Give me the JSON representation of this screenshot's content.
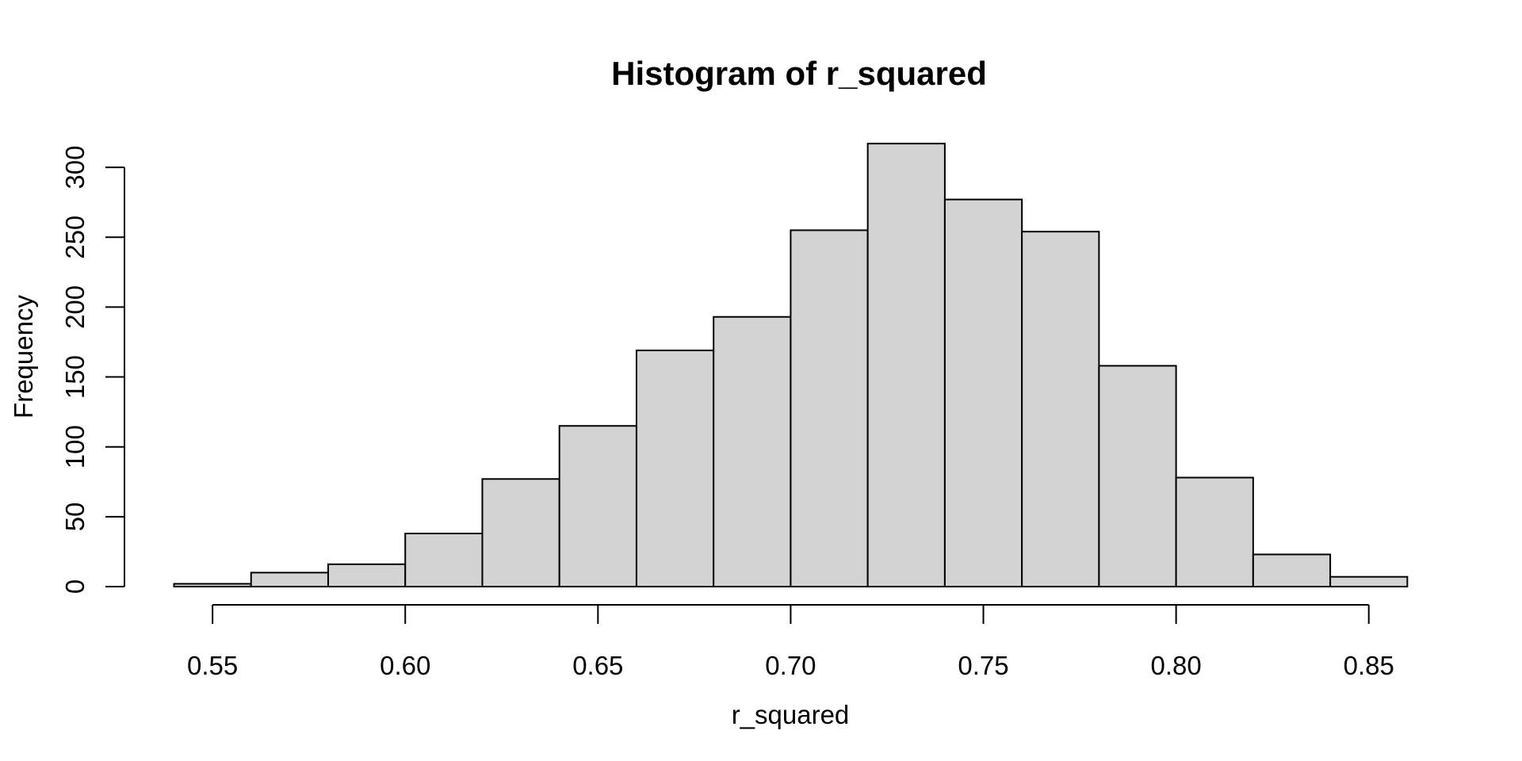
{
  "chart_data": {
    "type": "bar",
    "chart_kind": "histogram",
    "title": "Histogram of r_squared",
    "xlabel": "r_squared",
    "ylabel": "Frequency",
    "bin_start": 0.54,
    "bin_width": 0.02,
    "bin_edges": [
      0.54,
      0.56,
      0.58,
      0.6,
      0.62,
      0.64,
      0.66,
      0.68,
      0.7,
      0.72,
      0.74,
      0.76,
      0.78,
      0.8,
      0.82,
      0.84,
      0.86
    ],
    "counts": [
      2,
      10,
      16,
      38,
      77,
      115,
      169,
      193,
      255,
      317,
      277,
      254,
      158,
      78,
      23,
      7
    ],
    "x_ticks": [
      0.55,
      0.6,
      0.65,
      0.7,
      0.75,
      0.8,
      0.85
    ],
    "x_tick_labels": [
      "0.55",
      "0.60",
      "0.65",
      "0.70",
      "0.75",
      "0.80",
      "0.85"
    ],
    "y_ticks": [
      0,
      50,
      100,
      150,
      200,
      250,
      300
    ],
    "y_tick_labels": [
      "0",
      "50",
      "100",
      "150",
      "200",
      "250",
      "300"
    ],
    "xlim": [
      0.54,
      0.86
    ],
    "ylim": [
      0,
      317
    ],
    "grid": false,
    "legend_position": "none",
    "bar_fill": "#d3d3d3",
    "bar_stroke": "#000000",
    "axis_color": "#000000",
    "text_color": "#000000",
    "background": "#ffffff"
  }
}
